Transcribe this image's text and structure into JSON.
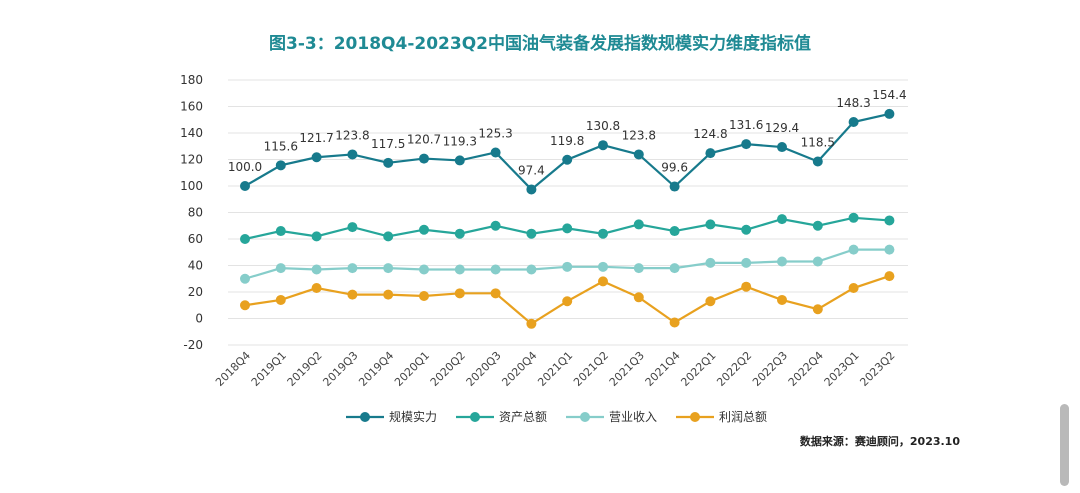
{
  "chart_data": {
    "type": "line",
    "title": "图3-3：2018Q4-2023Q2中国油气装备发展指数规模实力维度指标值",
    "xlabel": "",
    "ylabel": "",
    "ylim": [
      -20,
      180
    ],
    "yticks": [
      180,
      160,
      140,
      120,
      100,
      80,
      60,
      40,
      20,
      0,
      -20
    ],
    "grid": true,
    "legend_position": "bottom",
    "categories": [
      "2018Q4",
      "2019Q1",
      "2019Q2",
      "2019Q3",
      "2019Q4",
      "2020Q1",
      "2020Q2",
      "2020Q3",
      "2020Q4",
      "2021Q1",
      "2021Q2",
      "2021Q3",
      "2021Q4",
      "2022Q1",
      "2022Q2",
      "2022Q3",
      "2022Q4",
      "2023Q1",
      "2023Q2"
    ],
    "series": [
      {
        "name": "规模实力",
        "color": "#177a8c",
        "show_labels": true,
        "labels": [
          "100.0",
          "115.6",
          "121.7",
          "123.8",
          "117.5",
          "120.7",
          "119.3",
          "125.3",
          "97.4",
          "119.8",
          "130.8",
          "123.8",
          "99.6",
          "124.8",
          "131.6",
          "129.4",
          "118.5",
          "148.3",
          "154.4"
        ],
        "values": [
          100.0,
          115.6,
          121.7,
          123.8,
          117.5,
          120.7,
          119.3,
          125.3,
          97.4,
          119.8,
          130.8,
          123.8,
          99.6,
          124.8,
          131.6,
          129.4,
          118.5,
          148.3,
          154.4
        ]
      },
      {
        "name": "资产总额",
        "color": "#26a69a",
        "show_labels": false,
        "values": [
          60,
          66,
          62,
          69,
          62,
          67,
          64,
          70,
          64,
          68,
          64,
          71,
          66,
          71,
          67,
          75,
          70,
          76,
          74
        ]
      },
      {
        "name": "营业收入",
        "color": "#86cdca",
        "show_labels": false,
        "values": [
          30,
          38,
          37,
          38,
          38,
          37,
          37,
          37,
          37,
          39,
          39,
          38,
          38,
          42,
          42,
          43,
          43,
          52,
          52
        ]
      },
      {
        "name": "利润总额",
        "color": "#e8a11f",
        "show_labels": false,
        "values": [
          10,
          14,
          23,
          18,
          18,
          17,
          19,
          19,
          -4,
          13,
          28,
          16,
          -3,
          13,
          24,
          14,
          7,
          23,
          32
        ]
      }
    ]
  },
  "source_note": "数据来源：赛迪顾问，2023.10"
}
